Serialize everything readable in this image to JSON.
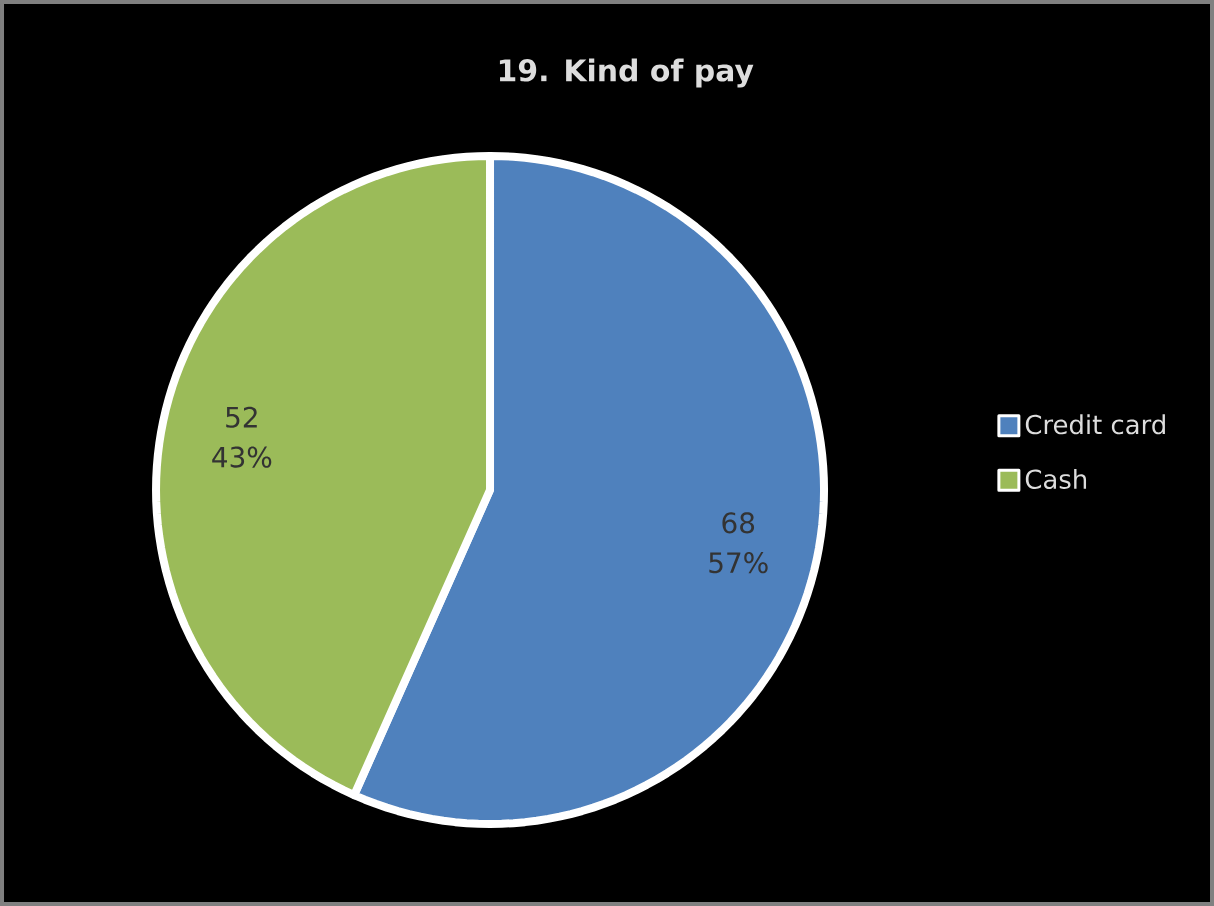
{
  "chart_data": {
    "type": "pie",
    "title": "19. Kind of pay",
    "categories": [
      "Credit card",
      "Cash"
    ],
    "values": [
      68,
      52
    ],
    "colors": [
      "#4f81bd",
      "#9bbb59"
    ],
    "value_labels": [
      "68 57%",
      "52 43%"
    ],
    "legend": "right"
  }
}
